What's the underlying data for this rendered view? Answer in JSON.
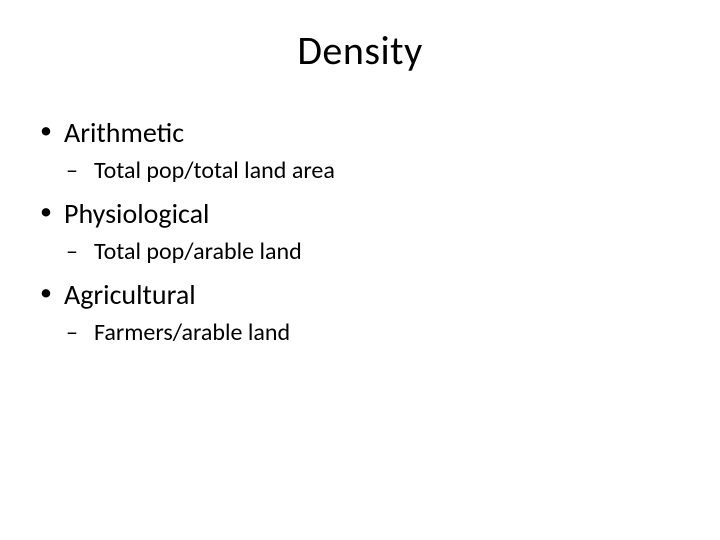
{
  "slide": {
    "title": "Density",
    "title_fontsize": 40,
    "background_color": "#ffffff",
    "text_color": "#000000",
    "font_family": "Calibri",
    "bullets": [
      {
        "label": "Arithmetic",
        "sub": [
          {
            "label": "Total pop/total land area"
          }
        ]
      },
      {
        "label": "Physiological",
        "sub": [
          {
            "label": "Total pop/arable land"
          }
        ]
      },
      {
        "label": "Agricultural",
        "sub": [
          {
            "label": "Farmers/arable land"
          }
        ]
      }
    ],
    "level1_fontsize": 28,
    "level2_fontsize": 24
  }
}
